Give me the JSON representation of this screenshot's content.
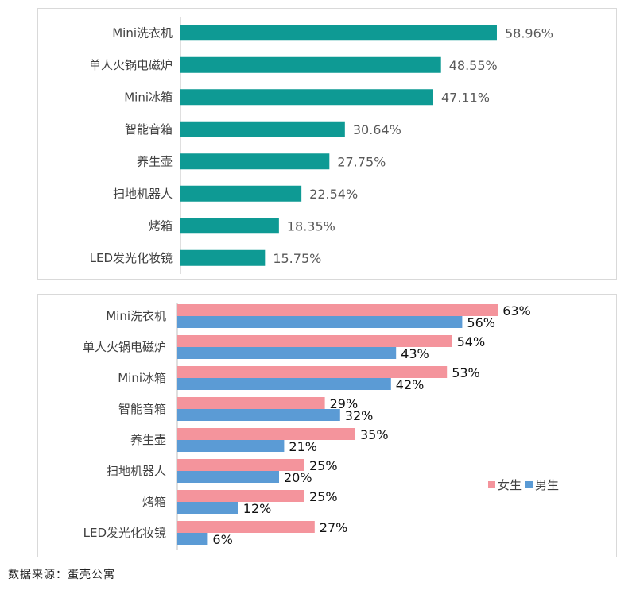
{
  "chart_data": [
    {
      "type": "bar",
      "orientation": "horizontal",
      "categories": [
        "Mini洗衣机",
        "单人火锅电磁炉",
        "Mini冰箱",
        "智能音箱",
        "养生壶",
        "扫地机器人",
        "烤箱",
        "LED发光化妆镜"
      ],
      "values": [
        58.96,
        48.55,
        47.11,
        30.64,
        27.75,
        22.54,
        18.35,
        15.75
      ],
      "value_labels": [
        "58.96%",
        "48.55%",
        "47.11%",
        "30.64%",
        "27.75%",
        "22.54%",
        "18.35%",
        "15.75%"
      ],
      "color": "#0e9a94",
      "xlim": [
        0,
        70
      ],
      "grid": false
    },
    {
      "type": "bar",
      "orientation": "horizontal",
      "categories": [
        "Mini洗衣机",
        "单人火锅电磁炉",
        "Mini冰箱",
        "智能音箱",
        "养生壶",
        "扫地机器人",
        "烤箱",
        "LED发光化妆镜"
      ],
      "series": [
        {
          "name": "女生",
          "color": "#f4949c",
          "values": [
            63,
            54,
            53,
            29,
            35,
            25,
            25,
            27
          ],
          "labels": [
            "63%",
            "54%",
            "53%",
            "29%",
            "35%",
            "25%",
            "25%",
            "27%"
          ]
        },
        {
          "name": "男生",
          "color": "#5b9bd5",
          "values": [
            56,
            43,
            42,
            32,
            21,
            20,
            12,
            6
          ],
          "labels": [
            "56%",
            "43%",
            "42%",
            "32%",
            "21%",
            "20%",
            "12%",
            "6%"
          ]
        }
      ],
      "xlim": [
        0,
        78
      ],
      "legend": "right",
      "grid": false
    }
  ],
  "source": "数据来源：蛋壳公寓"
}
